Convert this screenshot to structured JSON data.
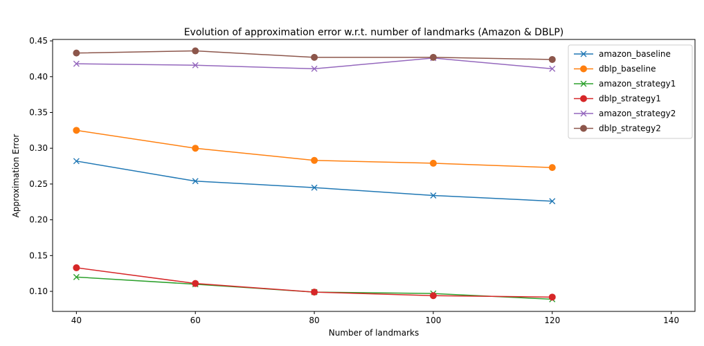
{
  "chart_data": {
    "type": "line",
    "title": "Evolution of approximation error w.r.t. number of landmarks (Amazon & DBLP)",
    "xlabel": "Number of landmarks",
    "ylabel": "Approximation Error",
    "x": [
      40,
      60,
      80,
      100,
      120
    ],
    "xlim": [
      36,
      144
    ],
    "ylim": [
      0.072,
      0.452
    ],
    "xticks": [
      "40",
      "60",
      "80",
      "100",
      "120",
      "140"
    ],
    "yticks": [
      "0.10",
      "0.15",
      "0.20",
      "0.25",
      "0.30",
      "0.35",
      "0.40",
      "0.45"
    ],
    "grid": false,
    "legend_position": "top-right",
    "series": [
      {
        "name": "amazon_baseline",
        "color": "#1f77b4",
        "marker": "x",
        "values": [
          0.282,
          0.254,
          0.245,
          0.234,
          0.226
        ]
      },
      {
        "name": "dblp_baseline",
        "color": "#ff7f0e",
        "marker": "o",
        "values": [
          0.325,
          0.3,
          0.283,
          0.279,
          0.273
        ]
      },
      {
        "name": "amazon_strategy1",
        "color": "#2ca02c",
        "marker": "x",
        "values": [
          0.12,
          0.11,
          0.099,
          0.097,
          0.089
        ]
      },
      {
        "name": "dblp_strategy1",
        "color": "#d62728",
        "marker": "o",
        "values": [
          0.133,
          0.111,
          0.099,
          0.094,
          0.092
        ]
      },
      {
        "name": "amazon_strategy2",
        "color": "#9467bd",
        "marker": "x",
        "values": [
          0.418,
          0.416,
          0.411,
          0.426,
          0.411
        ]
      },
      {
        "name": "dblp_strategy2",
        "color": "#8c564b",
        "marker": "o",
        "values": [
          0.433,
          0.436,
          0.427,
          0.427,
          0.424
        ]
      }
    ]
  }
}
